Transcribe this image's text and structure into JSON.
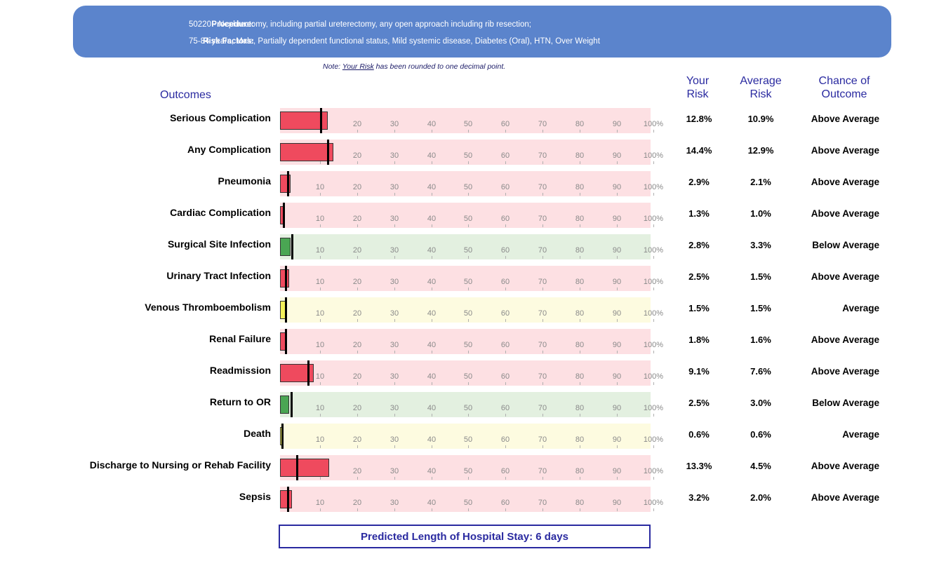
{
  "header": {
    "procedure_label": "Procedure:",
    "procedure_value": "50220 - Nephrectomy, including partial ureterectomy, any open approach including rib resection;",
    "risk_label": "Risk Factors:",
    "risk_value": "75-84 years, Male, Partially dependent functional status, Mild systemic disease, Diabetes (Oral), HTN, Over Weight"
  },
  "note": {
    "prefix": "Note: ",
    "link": "Your Risk",
    "suffix": " has been rounded to one decimal point."
  },
  "columns": {
    "outcomes": "Outcomes",
    "your_risk": "Your\nRisk",
    "average_risk": "Average\nRisk",
    "chance": "Chance of\nOutcome"
  },
  "colors": {
    "above_track": "#fde0e3",
    "above_bar": "#ef4a5e",
    "below_track": "#e3f0e0",
    "below_bar": "#4aa653",
    "avg_track": "#fdfbe0",
    "avg_bar": "#f3f05a"
  },
  "chart_data": {
    "type": "bar",
    "xlim": [
      0,
      100
    ],
    "tick_labels": [
      "10",
      "20",
      "30",
      "40",
      "50",
      "60",
      "70",
      "80",
      "90",
      "100%"
    ],
    "rows": [
      {
        "label": "Serious Complication",
        "your_risk": 12.8,
        "avg_risk": 10.9,
        "your_text": "12.8%",
        "avg_text": "10.9%",
        "chance": "Above Average",
        "status": "above"
      },
      {
        "label": "Any Complication",
        "your_risk": 14.4,
        "avg_risk": 12.9,
        "your_text": "14.4%",
        "avg_text": "12.9%",
        "chance": "Above Average",
        "status": "above"
      },
      {
        "label": "Pneumonia",
        "your_risk": 2.9,
        "avg_risk": 2.1,
        "your_text": "2.9%",
        "avg_text": "2.1%",
        "chance": "Above Average",
        "status": "above"
      },
      {
        "label": "Cardiac Complication",
        "your_risk": 1.3,
        "avg_risk": 1.0,
        "your_text": "1.3%",
        "avg_text": "1.0%",
        "chance": "Above Average",
        "status": "above"
      },
      {
        "label": "Surgical Site Infection",
        "your_risk": 2.8,
        "avg_risk": 3.3,
        "your_text": "2.8%",
        "avg_text": "3.3%",
        "chance": "Below Average",
        "status": "below"
      },
      {
        "label": "Urinary Tract Infection",
        "your_risk": 2.5,
        "avg_risk": 1.5,
        "your_text": "2.5%",
        "avg_text": "1.5%",
        "chance": "Above Average",
        "status": "above"
      },
      {
        "label": "Venous Thromboembolism",
        "your_risk": 1.5,
        "avg_risk": 1.5,
        "your_text": "1.5%",
        "avg_text": "1.5%",
        "chance": "Average",
        "status": "average"
      },
      {
        "label": "Renal Failure",
        "your_risk": 1.8,
        "avg_risk": 1.6,
        "your_text": "1.8%",
        "avg_text": "1.6%",
        "chance": "Above Average",
        "status": "above"
      },
      {
        "label": "Readmission",
        "your_risk": 9.1,
        "avg_risk": 7.6,
        "your_text": "9.1%",
        "avg_text": "7.6%",
        "chance": "Above Average",
        "status": "above"
      },
      {
        "label": "Return to OR",
        "your_risk": 2.5,
        "avg_risk": 3.0,
        "your_text": "2.5%",
        "avg_text": "3.0%",
        "chance": "Below Average",
        "status": "below"
      },
      {
        "label": "Death",
        "your_risk": 0.6,
        "avg_risk": 0.6,
        "your_text": "0.6%",
        "avg_text": "0.6%",
        "chance": "Average",
        "status": "average"
      },
      {
        "label": "Discharge to Nursing or Rehab Facility",
        "your_risk": 13.3,
        "avg_risk": 4.5,
        "your_text": "13.3%",
        "avg_text": "4.5%",
        "chance": "Above Average",
        "status": "above"
      },
      {
        "label": "Sepsis",
        "your_risk": 3.2,
        "avg_risk": 2.0,
        "your_text": "3.2%",
        "avg_text": "2.0%",
        "chance": "Above Average",
        "status": "above"
      }
    ]
  },
  "footer": {
    "los_text": "Predicted Length of Hospital Stay: 6 days"
  }
}
